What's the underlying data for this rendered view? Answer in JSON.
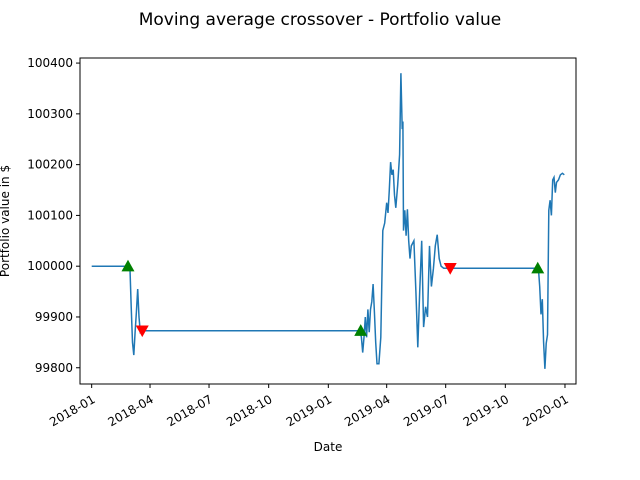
{
  "chart_data": {
    "type": "line",
    "title": "Moving average crossover - Portfolio value",
    "xlabel": "Date",
    "ylabel": "Portfolio value in $",
    "xlim": [
      "2017-12-14",
      "2020-01-18"
    ],
    "ylim": [
      99768,
      100410
    ],
    "x_ticks": [
      "2018-01",
      "2018-04",
      "2018-07",
      "2018-10",
      "2019-01",
      "2019-04",
      "2019-07",
      "2019-10",
      "2020-01"
    ],
    "y_ticks": [
      99800,
      99900,
      100000,
      100100,
      100200,
      100300,
      100400
    ],
    "grid": false,
    "colors": {
      "line": "#1f77b4",
      "buy": "#008000",
      "sell": "#ff0000"
    },
    "series": [
      {
        "points": [
          [
            "2018-01-01",
            100000
          ],
          [
            "2018-01-15",
            100000
          ],
          [
            "2018-02-01",
            100000
          ],
          [
            "2018-02-15",
            100000
          ],
          [
            "2018-03-01",
            100000
          ],
          [
            "2018-03-03",
            99920
          ],
          [
            "2018-03-05",
            99850
          ],
          [
            "2018-03-07",
            99825
          ],
          [
            "2018-03-09",
            99870
          ],
          [
            "2018-03-11",
            99910
          ],
          [
            "2018-03-13",
            99955
          ],
          [
            "2018-03-15",
            99900
          ],
          [
            "2018-03-17",
            99870
          ],
          [
            "2018-03-19",
            99873
          ],
          [
            "2018-06-01",
            99873
          ],
          [
            "2018-09-01",
            99873
          ],
          [
            "2018-12-01",
            99873
          ],
          [
            "2019-02-01",
            99873
          ],
          [
            "2019-02-19",
            99873
          ],
          [
            "2019-02-21",
            99860
          ],
          [
            "2019-02-23",
            99830
          ],
          [
            "2019-02-25",
            99860
          ],
          [
            "2019-02-27",
            99900
          ],
          [
            "2019-03-01",
            99860
          ],
          [
            "2019-03-03",
            99915
          ],
          [
            "2019-03-05",
            99870
          ],
          [
            "2019-03-07",
            99915
          ],
          [
            "2019-03-09",
            99930
          ],
          [
            "2019-03-11",
            99965
          ],
          [
            "2019-03-13",
            99910
          ],
          [
            "2019-03-15",
            99850
          ],
          [
            "2019-03-17",
            99808
          ],
          [
            "2019-03-20",
            99808
          ],
          [
            "2019-03-23",
            99860
          ],
          [
            "2019-03-26",
            100070
          ],
          [
            "2019-03-29",
            100085
          ],
          [
            "2019-04-01",
            100125
          ],
          [
            "2019-04-03",
            100105
          ],
          [
            "2019-04-05",
            100150
          ],
          [
            "2019-04-07",
            100205
          ],
          [
            "2019-04-09",
            100180
          ],
          [
            "2019-04-11",
            100190
          ],
          [
            "2019-04-13",
            100140
          ],
          [
            "2019-04-15",
            100115
          ],
          [
            "2019-04-18",
            100160
          ],
          [
            "2019-04-21",
            100220
          ],
          [
            "2019-04-23",
            100380
          ],
          [
            "2019-04-25",
            100270
          ],
          [
            "2019-04-26",
            100285
          ],
          [
            "2019-04-27",
            100070
          ],
          [
            "2019-04-29",
            100110
          ],
          [
            "2019-05-01",
            100060
          ],
          [
            "2019-05-03",
            100112
          ],
          [
            "2019-05-05",
            100050
          ],
          [
            "2019-05-07",
            100015
          ],
          [
            "2019-05-09",
            100040
          ],
          [
            "2019-05-13",
            100050
          ],
          [
            "2019-05-16",
            99950
          ],
          [
            "2019-05-19",
            99840
          ],
          [
            "2019-05-22",
            99950
          ],
          [
            "2019-05-25",
            100050
          ],
          [
            "2019-05-28",
            99880
          ],
          [
            "2019-05-31",
            99920
          ],
          [
            "2019-06-03",
            99900
          ],
          [
            "2019-06-06",
            100040
          ],
          [
            "2019-06-09",
            99960
          ],
          [
            "2019-06-12",
            99995
          ],
          [
            "2019-06-15",
            100040
          ],
          [
            "2019-06-18",
            100062
          ],
          [
            "2019-06-21",
            100015
          ],
          [
            "2019-06-24",
            100000
          ],
          [
            "2019-06-28",
            99996
          ],
          [
            "2019-07-05",
            99996
          ],
          [
            "2019-08-15",
            99996
          ],
          [
            "2019-10-01",
            99996
          ],
          [
            "2019-11-10",
            99996
          ],
          [
            "2019-11-21",
            99996
          ],
          [
            "2019-11-23",
            99960
          ],
          [
            "2019-11-25",
            99905
          ],
          [
            "2019-11-27",
            99935
          ],
          [
            "2019-11-29",
            99850
          ],
          [
            "2019-12-01",
            99798
          ],
          [
            "2019-12-03",
            99848
          ],
          [
            "2019-12-05",
            99865
          ],
          [
            "2019-12-07",
            100110
          ],
          [
            "2019-12-09",
            100130
          ],
          [
            "2019-12-11",
            100100
          ],
          [
            "2019-12-13",
            100170
          ],
          [
            "2019-12-15",
            100175
          ],
          [
            "2019-12-17",
            100145
          ],
          [
            "2019-12-19",
            100165
          ],
          [
            "2019-12-22",
            100170
          ],
          [
            "2019-12-25",
            100180
          ],
          [
            "2019-12-28",
            100183
          ],
          [
            "2019-12-31",
            100180
          ]
        ]
      }
    ],
    "buy_signals": [
      [
        "2018-02-26",
        100000
      ],
      [
        "2019-02-20",
        99873
      ],
      [
        "2019-11-20",
        99996
      ]
    ],
    "sell_signals": [
      [
        "2018-03-20",
        99873
      ],
      [
        "2019-07-08",
        99996
      ]
    ]
  }
}
